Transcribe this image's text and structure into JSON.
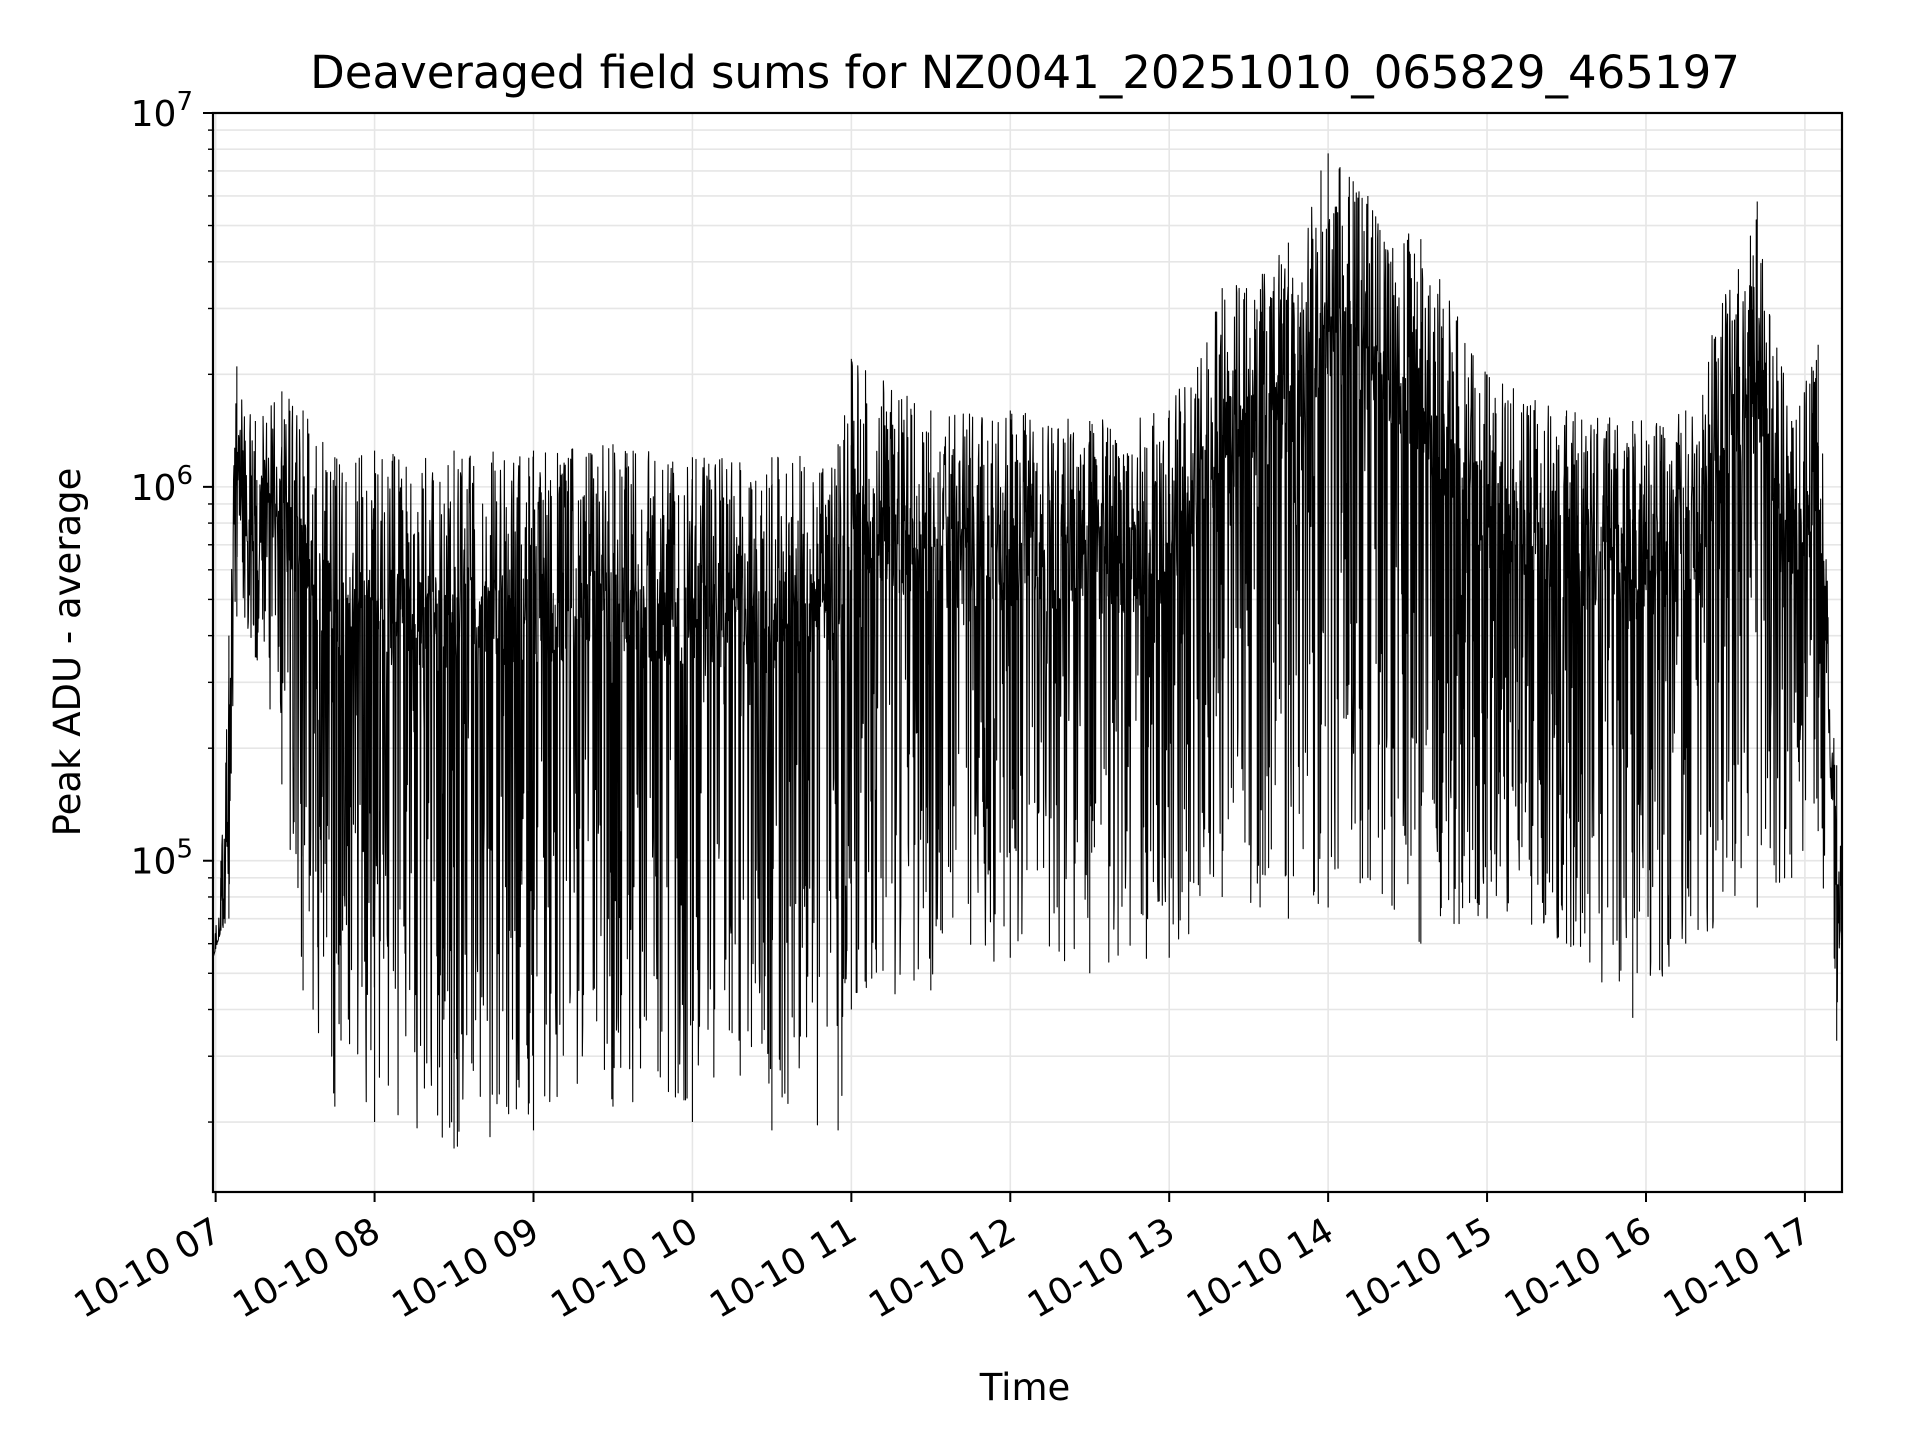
{
  "chart_data": {
    "type": "line",
    "title": "Deaveraged field sums for NZ0041_20251010_065829_465197",
    "xlabel": "Time",
    "ylabel": "Peak ADU - average",
    "yscale": "log",
    "ylim": [
      13000,
      10000000
    ],
    "xlim": [
      "2025-10-10 06:59",
      "2025-10-10 17:14"
    ],
    "grid": true,
    "line_color": "#000000",
    "grid_color": "#e6e6e6",
    "y_ticks": [
      {
        "value": 100000,
        "label_base": "10",
        "label_exp": "5"
      },
      {
        "value": 1000000,
        "label_base": "10",
        "label_exp": "6"
      },
      {
        "value": 10000000,
        "label_base": "10",
        "label_exp": "7"
      }
    ],
    "x_ticks": [
      {
        "value": "2025-10-10 07:00",
        "label": "10-10 07"
      },
      {
        "value": "2025-10-10 08:00",
        "label": "10-10 08"
      },
      {
        "value": "2025-10-10 09:00",
        "label": "10-10 09"
      },
      {
        "value": "2025-10-10 10:00",
        "label": "10-10 10"
      },
      {
        "value": "2025-10-10 11:00",
        "label": "10-10 11"
      },
      {
        "value": "2025-10-10 12:00",
        "label": "10-10 12"
      },
      {
        "value": "2025-10-10 13:00",
        "label": "10-10 13"
      },
      {
        "value": "2025-10-10 14:00",
        "label": "10-10 14"
      },
      {
        "value": "2025-10-10 15:00",
        "label": "10-10 15"
      },
      {
        "value": "2025-10-10 16:00",
        "label": "10-10 16"
      },
      {
        "value": "2025-10-10 17:00",
        "label": "10-10 17"
      }
    ],
    "series": [
      {
        "envelope": [
          {
            "x": "2025-10-10 06:59",
            "low": 55000,
            "high": 60000
          },
          {
            "x": "2025-10-10 07:02",
            "low": 65000,
            "high": 100000
          },
          {
            "x": "2025-10-10 07:05",
            "low": 70000,
            "high": 400000
          },
          {
            "x": "2025-10-10 07:08",
            "low": 450000,
            "high": 2100000
          },
          {
            "x": "2025-10-10 07:15",
            "low": 350000,
            "high": 1500000
          },
          {
            "x": "2025-10-10 07:25",
            "low": 160000,
            "high": 1800000
          },
          {
            "x": "2025-10-10 07:33",
            "low": 45000,
            "high": 1600000
          },
          {
            "x": "2025-10-10 07:45",
            "low": 22000,
            "high": 1200000
          },
          {
            "x": "2025-10-10 08:00",
            "low": 20000,
            "high": 1250000
          },
          {
            "x": "2025-10-10 08:30",
            "low": 17000,
            "high": 1250000
          },
          {
            "x": "2025-10-10 09:00",
            "low": 19000,
            "high": 1250000
          },
          {
            "x": "2025-10-10 09:30",
            "low": 22000,
            "high": 1300000
          },
          {
            "x": "2025-10-10 10:00",
            "low": 20000,
            "high": 1200000
          },
          {
            "x": "2025-10-10 10:30",
            "low": 19000,
            "high": 1200000
          },
          {
            "x": "2025-10-10 10:55",
            "low": 19000,
            "high": 1300000
          },
          {
            "x": "2025-10-10 11:00",
            "low": 40000,
            "high": 2200000
          },
          {
            "x": "2025-10-10 11:30",
            "low": 45000,
            "high": 1600000
          },
          {
            "x": "2025-10-10 12:00",
            "low": 55000,
            "high": 1600000
          },
          {
            "x": "2025-10-10 12:30",
            "low": 50000,
            "high": 1500000
          },
          {
            "x": "2025-10-10 13:00",
            "low": 55000,
            "high": 1600000
          },
          {
            "x": "2025-10-10 13:20",
            "low": 80000,
            "high": 3400000
          },
          {
            "x": "2025-10-10 13:45",
            "low": 70000,
            "high": 4500000
          },
          {
            "x": "2025-10-10 14:00",
            "low": 75000,
            "high": 7800000
          },
          {
            "x": "2025-10-10 14:15",
            "low": 90000,
            "high": 6000000
          },
          {
            "x": "2025-10-10 14:35",
            "low": 60000,
            "high": 4600000
          },
          {
            "x": "2025-10-10 15:00",
            "low": 70000,
            "high": 2000000
          },
          {
            "x": "2025-10-10 15:30",
            "low": 60000,
            "high": 1600000
          },
          {
            "x": "2025-10-10 15:55",
            "low": 38000,
            "high": 1500000
          },
          {
            "x": "2025-10-10 16:15",
            "low": 60000,
            "high": 1600000
          },
          {
            "x": "2025-10-10 16:42",
            "low": 75000,
            "high": 5800000
          },
          {
            "x": "2025-10-10 16:55",
            "low": 90000,
            "high": 1500000
          },
          {
            "x": "2025-10-10 17:05",
            "low": 120000,
            "high": 2400000
          },
          {
            "x": "2025-10-10 17:12",
            "low": 33000,
            "high": 180000
          },
          {
            "x": "2025-10-10 17:14",
            "low": 90000,
            "high": 100000
          }
        ]
      }
    ]
  }
}
